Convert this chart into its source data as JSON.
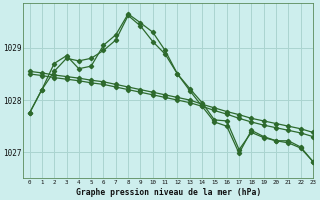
{
  "title": "Graphe pression niveau de la mer (hPa)",
  "bg_color": "#cdeeed",
  "grid_color": "#aad4d0",
  "line_color": "#2d6a2d",
  "xlim": [
    -0.5,
    23
  ],
  "ylim": [
    1026.5,
    1029.85
  ],
  "yticks": [
    1027,
    1028,
    1029
  ],
  "xticks": [
    0,
    1,
    2,
    3,
    4,
    5,
    6,
    7,
    8,
    9,
    10,
    11,
    12,
    13,
    14,
    15,
    16,
    17,
    18,
    19,
    20,
    21,
    22,
    23
  ],
  "series": [
    {
      "x": [
        0,
        1,
        2,
        3,
        4,
        5,
        6,
        7,
        8,
        9,
        10,
        11,
        12,
        13,
        14,
        15,
        16,
        17,
        18,
        19,
        20,
        21,
        22,
        23
      ],
      "y": [
        1027.75,
        1028.2,
        1028.55,
        1028.8,
        1028.75,
        1028.8,
        1028.95,
        1029.15,
        1029.62,
        1029.42,
        1029.12,
        1028.88,
        1028.5,
        1028.22,
        1027.95,
        1027.62,
        1027.6,
        1027.05,
        1027.38,
        1027.28,
        1027.22,
        1027.22,
        1027.1,
        1026.82
      ]
    },
    {
      "x": [
        0,
        1,
        2,
        3,
        4,
        5,
        6,
        7,
        8,
        9,
        10,
        11,
        12,
        13,
        14,
        15,
        16,
        17,
        18,
        19,
        20,
        21,
        22,
        23
      ],
      "y": [
        1027.75,
        1028.2,
        1028.7,
        1028.85,
        1028.6,
        1028.65,
        1029.05,
        1029.25,
        1029.65,
        1029.48,
        1029.3,
        1028.95,
        1028.5,
        1028.18,
        1027.88,
        1027.58,
        1027.5,
        1026.98,
        1027.42,
        1027.3,
        1027.22,
        1027.18,
        1027.08,
        1026.82
      ]
    },
    {
      "x": [
        0,
        1,
        2,
        3,
        4,
        5,
        6,
        7,
        8,
        9,
        10,
        11,
        12,
        13,
        14,
        15,
        16,
        17,
        18,
        19,
        20,
        21,
        22,
        23
      ],
      "y": [
        1028.55,
        1028.52,
        1028.48,
        1028.45,
        1028.42,
        1028.38,
        1028.35,
        1028.3,
        1028.25,
        1028.2,
        1028.15,
        1028.1,
        1028.05,
        1028.0,
        1027.92,
        1027.85,
        1027.78,
        1027.72,
        1027.65,
        1027.6,
        1027.55,
        1027.5,
        1027.45,
        1027.38
      ]
    },
    {
      "x": [
        0,
        1,
        2,
        3,
        4,
        5,
        6,
        7,
        8,
        9,
        10,
        11,
        12,
        13,
        14,
        15,
        16,
        17,
        18,
        19,
        20,
        21,
        22,
        23
      ],
      "y": [
        1028.5,
        1028.47,
        1028.43,
        1028.4,
        1028.37,
        1028.33,
        1028.3,
        1028.25,
        1028.2,
        1028.15,
        1028.1,
        1028.05,
        1028.0,
        1027.95,
        1027.88,
        1027.8,
        1027.73,
        1027.65,
        1027.58,
        1027.52,
        1027.47,
        1027.42,
        1027.37,
        1027.3
      ]
    }
  ]
}
